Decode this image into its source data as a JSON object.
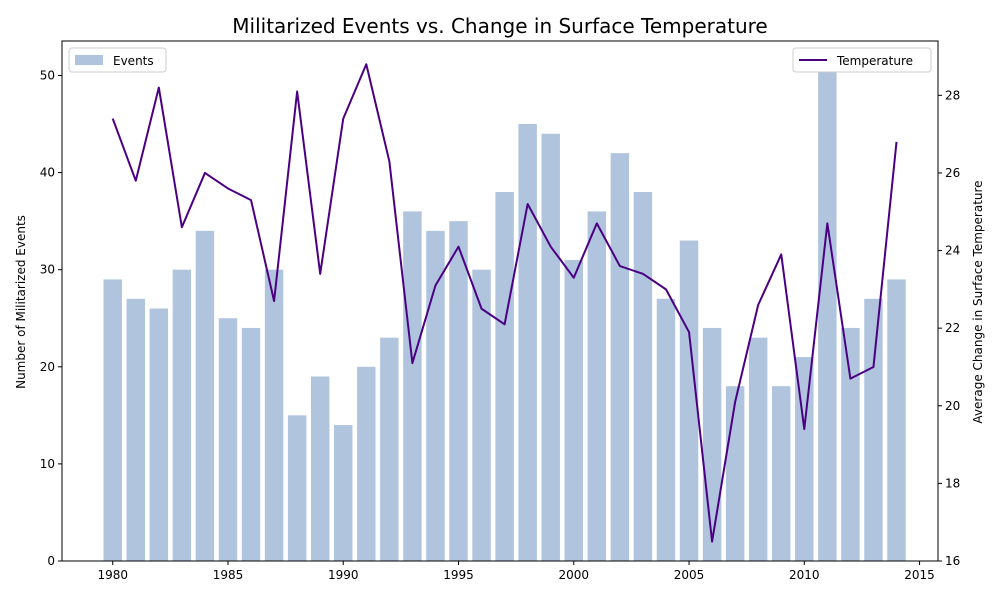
{
  "chart_data": {
    "type": "bar+line",
    "title": "Militarized Events vs. Change in Surface Temperature",
    "xlabel": "",
    "ylabel": "Number of Militarized Events",
    "y2label": "Average Change in Surface Temperature",
    "xlim": [
      1977.8,
      2015.8
    ],
    "ylim": [
      0,
      53.55
    ],
    "y2lim": [
      16.0,
      29.4
    ],
    "x_ticks": [
      1980,
      1985,
      1990,
      1995,
      2000,
      2005,
      2010,
      2015
    ],
    "y_ticks": [
      0,
      10,
      20,
      30,
      40,
      50
    ],
    "y2_ticks": [
      16,
      18,
      20,
      22,
      24,
      26,
      28
    ],
    "grid": false,
    "legend_left": {
      "position": "upper-left",
      "label": "Events"
    },
    "legend_right": {
      "position": "upper-right",
      "label": "Temperature"
    },
    "colors": {
      "bar": "#b0c4de",
      "line": "#4b0082"
    },
    "years": [
      1980,
      1981,
      1982,
      1983,
      1984,
      1985,
      1986,
      1987,
      1988,
      1989,
      1990,
      1991,
      1992,
      1993,
      1994,
      1995,
      1996,
      1997,
      1998,
      1999,
      2000,
      2001,
      2002,
      2003,
      2004,
      2005,
      2006,
      2007,
      2008,
      2009,
      2010,
      2011,
      2012,
      2013,
      2014
    ],
    "series": [
      {
        "name": "Events",
        "kind": "bar",
        "axis": "left",
        "values": [
          29,
          27,
          26,
          30,
          34,
          25,
          24,
          30,
          15,
          19,
          14,
          20,
          23,
          36,
          34,
          35,
          30,
          38,
          45,
          44,
          31,
          36,
          42,
          38,
          27,
          33,
          24,
          18,
          23,
          18,
          21,
          51,
          24,
          27,
          29
        ]
      },
      {
        "name": "Temperature",
        "kind": "line",
        "axis": "right",
        "values": [
          27.4,
          25.8,
          28.2,
          24.6,
          26.0,
          25.6,
          25.3,
          22.7,
          28.1,
          23.4,
          27.4,
          28.8,
          26.3,
          21.1,
          23.1,
          24.1,
          22.5,
          22.1,
          25.2,
          24.1,
          23.3,
          24.7,
          23.6,
          23.4,
          23.0,
          21.9,
          16.5,
          20.1,
          22.6,
          23.9,
          19.4,
          24.7,
          20.7,
          21.0,
          26.8
        ]
      }
    ]
  }
}
